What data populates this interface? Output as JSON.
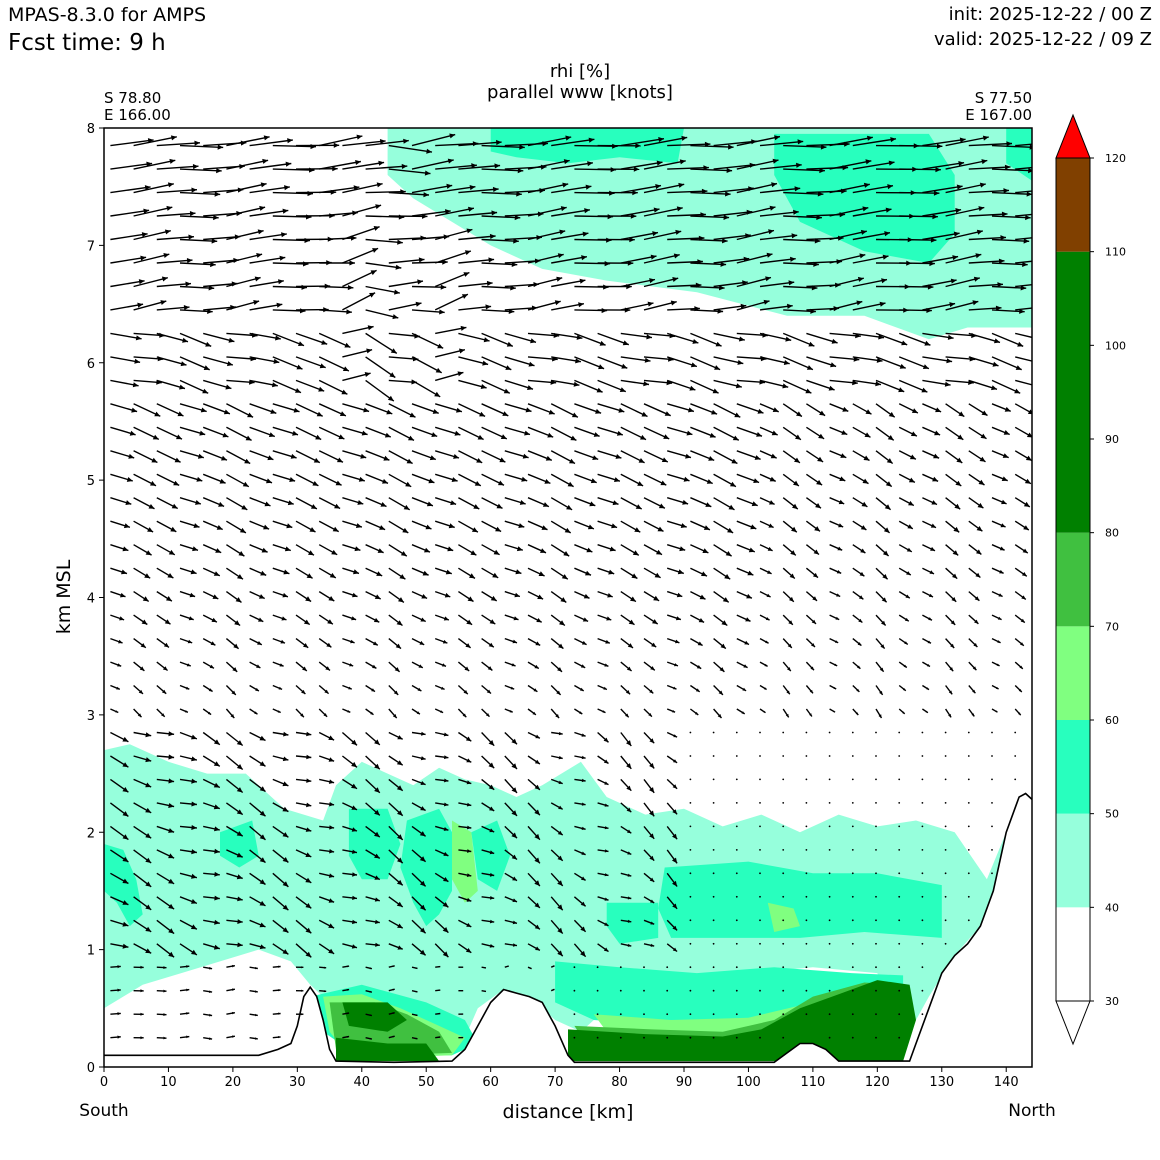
{
  "header": {
    "model": "MPAS-8.3.0 for AMPS",
    "fcst_time": "Fcst time:    9 h",
    "init": "init: 2025-12-22 / 00 Z",
    "valid": "valid: 2025-12-22 / 09 Z"
  },
  "cross_section": {
    "start_lat": "S 78.80",
    "start_lon": "E 166.00",
    "end_lat": "S 77.50",
    "end_lon": "E 167.00",
    "left_end": "South",
    "right_end": "North"
  },
  "chart_data": {
    "type": "heatmap",
    "title_line1": "rhi [%]",
    "title_line2": "parallel www [knots]",
    "xlabel": "distance [km]",
    "ylabel": "km MSL",
    "xlim": [
      0,
      144
    ],
    "ylim": [
      0,
      8
    ],
    "xticks": [
      0,
      10,
      20,
      30,
      40,
      50,
      60,
      70,
      80,
      90,
      100,
      110,
      120,
      130,
      140
    ],
    "yticks": [
      0,
      1,
      2,
      3,
      4,
      5,
      6,
      7,
      8
    ],
    "colorbar": {
      "ticks": [
        30,
        40,
        50,
        60,
        70,
        80,
        90,
        100,
        110,
        120
      ],
      "extend": "both",
      "levels": [
        {
          "from": 30,
          "to": 40,
          "color": "#ffffff"
        },
        {
          "from": 40,
          "to": 50,
          "color": "#96ffdc"
        },
        {
          "from": 50,
          "to": 60,
          "color": "#28ffbe"
        },
        {
          "from": 60,
          "to": 70,
          "color": "#80ff80"
        },
        {
          "from": 70,
          "to": 80,
          "color": "#40c040"
        },
        {
          "from": 80,
          "to": 110,
          "color": "#008000"
        },
        {
          "from": 110,
          "to": 120,
          "color": "#804000"
        },
        {
          "from": 120,
          "to": 130,
          "color": "#ff0000"
        }
      ]
    },
    "terrain": [
      [
        0,
        0.1
      ],
      [
        24,
        0.1
      ],
      [
        27,
        0.15
      ],
      [
        29,
        0.2
      ],
      [
        30,
        0.35
      ],
      [
        31,
        0.6
      ],
      [
        32,
        0.68
      ],
      [
        33,
        0.6
      ],
      [
        34,
        0.4
      ],
      [
        35,
        0.15
      ],
      [
        36,
        0.05
      ],
      [
        45,
        0.04
      ],
      [
        54,
        0.05
      ],
      [
        56,
        0.15
      ],
      [
        58,
        0.35
      ],
      [
        60,
        0.55
      ],
      [
        62,
        0.66
      ],
      [
        64,
        0.63
      ],
      [
        66,
        0.6
      ],
      [
        68,
        0.55
      ],
      [
        70,
        0.35
      ],
      [
        72,
        0.1
      ],
      [
        73,
        0.04
      ],
      [
        104,
        0.04
      ],
      [
        106,
        0.12
      ],
      [
        108,
        0.2
      ],
      [
        110,
        0.2
      ],
      [
        112,
        0.15
      ],
      [
        114,
        0.05
      ],
      [
        125,
        0.05
      ],
      [
        126,
        0.2
      ],
      [
        128,
        0.5
      ],
      [
        130,
        0.8
      ],
      [
        132,
        0.95
      ],
      [
        134,
        1.05
      ],
      [
        136,
        1.2
      ],
      [
        138,
        1.5
      ],
      [
        140,
        2.0
      ],
      [
        142,
        2.3
      ],
      [
        143,
        2.33
      ],
      [
        144,
        2.28
      ]
    ],
    "rhi_regions": [
      {
        "level": 40,
        "points": [
          [
            44,
            8
          ],
          [
            144,
            8
          ],
          [
            144,
            6.3
          ],
          [
            134,
            6.3
          ],
          [
            128,
            6.2
          ],
          [
            118,
            6.4
          ],
          [
            106,
            6.4
          ],
          [
            92,
            6.6
          ],
          [
            78,
            6.7
          ],
          [
            68,
            6.8
          ],
          [
            60,
            7.0
          ],
          [
            54,
            7.2
          ],
          [
            48,
            7.4
          ],
          [
            44,
            7.6
          ]
        ]
      },
      {
        "level": 50,
        "points": [
          [
            60,
            8
          ],
          [
            90,
            8
          ],
          [
            89,
            7.7
          ],
          [
            80,
            7.75
          ],
          [
            72,
            7.7
          ],
          [
            64,
            7.75
          ],
          [
            60,
            7.8
          ]
        ]
      },
      {
        "level": 50,
        "points": [
          [
            104,
            7.95
          ],
          [
            128,
            7.95
          ],
          [
            132,
            7.6
          ],
          [
            132,
            7.1
          ],
          [
            128,
            6.85
          ],
          [
            118,
            6.95
          ],
          [
            108,
            7.2
          ],
          [
            104,
            7.6
          ]
        ]
      },
      {
        "level": 50,
        "points": [
          [
            140,
            8
          ],
          [
            144,
            8
          ],
          [
            144,
            7.55
          ],
          [
            140,
            7.7
          ]
        ]
      },
      {
        "level": 40,
        "points": [
          [
            0,
            2.7
          ],
          [
            4,
            2.75
          ],
          [
            10,
            2.6
          ],
          [
            16,
            2.5
          ],
          [
            22,
            2.5
          ],
          [
            28,
            2.2
          ],
          [
            34,
            2.1
          ],
          [
            36,
            2.4
          ],
          [
            40,
            2.6
          ],
          [
            44,
            2.5
          ],
          [
            48,
            2.4
          ],
          [
            52,
            2.55
          ],
          [
            56,
            2.45
          ],
          [
            60,
            2.4
          ],
          [
            64,
            2.3
          ],
          [
            68,
            2.4
          ],
          [
            74,
            2.6
          ],
          [
            78,
            2.3
          ],
          [
            84,
            2.15
          ],
          [
            90,
            2.2
          ],
          [
            96,
            2.05
          ],
          [
            102,
            2.15
          ],
          [
            108,
            2.0
          ],
          [
            114,
            2.15
          ],
          [
            120,
            2.05
          ],
          [
            126,
            2.1
          ],
          [
            132,
            2.0
          ],
          [
            137,
            1.6
          ],
          [
            140,
            2.0
          ],
          [
            141,
            1.8
          ],
          [
            139,
            1.4
          ],
          [
            136,
            1.2
          ],
          [
            132,
            0.95
          ],
          [
            128,
            0.6
          ],
          [
            126,
            0.4
          ],
          [
            124,
            0.3
          ],
          [
            120,
            0.8
          ],
          [
            110,
            0.85
          ],
          [
            100,
            0.8
          ],
          [
            90,
            0.7
          ],
          [
            80,
            0.6
          ],
          [
            74,
            0.3
          ],
          [
            70,
            0.4
          ],
          [
            66,
            0.6
          ],
          [
            62,
            0.66
          ],
          [
            58,
            0.5
          ],
          [
            56,
            0.25
          ],
          [
            54,
            0.1
          ],
          [
            45,
            0.1
          ],
          [
            38,
            0.2
          ],
          [
            34,
            0.6
          ],
          [
            32,
            0.7
          ],
          [
            29,
            0.9
          ],
          [
            24,
            1.0
          ],
          [
            18,
            0.9
          ],
          [
            12,
            0.8
          ],
          [
            6,
            0.7
          ],
          [
            0,
            0.5
          ]
        ]
      },
      {
        "level": 50,
        "points": [
          [
            0,
            1.9
          ],
          [
            3,
            1.85
          ],
          [
            5,
            1.6
          ],
          [
            6,
            1.3
          ],
          [
            4,
            1.2
          ],
          [
            2,
            1.4
          ],
          [
            0,
            1.5
          ]
        ]
      },
      {
        "level": 50,
        "points": [
          [
            18,
            2.0
          ],
          [
            23,
            2.1
          ],
          [
            24,
            1.8
          ],
          [
            21,
            1.7
          ],
          [
            18,
            1.8
          ]
        ]
      },
      {
        "level": 50,
        "points": [
          [
            38,
            2.2
          ],
          [
            44,
            2.2
          ],
          [
            46,
            1.9
          ],
          [
            44,
            1.6
          ],
          [
            40,
            1.6
          ],
          [
            38,
            1.8
          ]
        ]
      },
      {
        "level": 50,
        "points": [
          [
            47,
            2.1
          ],
          [
            52,
            2.2
          ],
          [
            54,
            2.0
          ],
          [
            54,
            1.5
          ],
          [
            52,
            1.3
          ],
          [
            50,
            1.2
          ],
          [
            48,
            1.4
          ],
          [
            46,
            1.7
          ]
        ]
      },
      {
        "level": 50,
        "points": [
          [
            57,
            2.0
          ],
          [
            61,
            2.1
          ],
          [
            63,
            1.8
          ],
          [
            61,
            1.5
          ],
          [
            58,
            1.6
          ]
        ]
      },
      {
        "level": 50,
        "points": [
          [
            87,
            1.7
          ],
          [
            100,
            1.75
          ],
          [
            110,
            1.65
          ],
          [
            120,
            1.65
          ],
          [
            130,
            1.55
          ],
          [
            130,
            1.1
          ],
          [
            118,
            1.15
          ],
          [
            108,
            1.1
          ],
          [
            96,
            1.1
          ],
          [
            88,
            1.1
          ],
          [
            86,
            1.35
          ]
        ]
      },
      {
        "level": 50,
        "points": [
          [
            78,
            1.4
          ],
          [
            86,
            1.4
          ],
          [
            86,
            1.1
          ],
          [
            80,
            1.05
          ],
          [
            78,
            1.2
          ]
        ]
      },
      {
        "level": 50,
        "points": [
          [
            70,
            0.9
          ],
          [
            80,
            0.85
          ],
          [
            92,
            0.8
          ],
          [
            104,
            0.85
          ],
          [
            116,
            0.8
          ],
          [
            124,
            0.78
          ],
          [
            124,
            0.4
          ],
          [
            112,
            0.4
          ],
          [
            100,
            0.38
          ],
          [
            88,
            0.35
          ],
          [
            76,
            0.4
          ],
          [
            70,
            0.55
          ]
        ]
      },
      {
        "level": 50,
        "points": [
          [
            32,
            0.6
          ],
          [
            40,
            0.7
          ],
          [
            50,
            0.55
          ],
          [
            56,
            0.4
          ],
          [
            58,
            0.2
          ],
          [
            54,
            0.1
          ],
          [
            46,
            0.1
          ],
          [
            38,
            0.15
          ],
          [
            34,
            0.3
          ]
        ]
      },
      {
        "level": 60,
        "points": [
          [
            54,
            2.1
          ],
          [
            57,
            2.0
          ],
          [
            58,
            1.5
          ],
          [
            56,
            1.4
          ],
          [
            54,
            1.6
          ]
        ]
      },
      {
        "level": 60,
        "points": [
          [
            103,
            1.4
          ],
          [
            107,
            1.35
          ],
          [
            108,
            1.2
          ],
          [
            104,
            1.15
          ]
        ]
      },
      {
        "level": 60,
        "points": [
          [
            34,
            0.6
          ],
          [
            40,
            0.62
          ],
          [
            46,
            0.5
          ],
          [
            52,
            0.35
          ],
          [
            56,
            0.25
          ],
          [
            54,
            0.1
          ],
          [
            44,
            0.08
          ],
          [
            38,
            0.1
          ],
          [
            35,
            0.3
          ]
        ]
      },
      {
        "level": 60,
        "points": [
          [
            76,
            0.45
          ],
          [
            88,
            0.4
          ],
          [
            100,
            0.42
          ],
          [
            110,
            0.55
          ],
          [
            120,
            0.72
          ],
          [
            124,
            0.7
          ],
          [
            124,
            0.35
          ],
          [
            112,
            0.3
          ],
          [
            100,
            0.28
          ],
          [
            88,
            0.26
          ],
          [
            78,
            0.3
          ]
        ]
      },
      {
        "level": 70,
        "points": [
          [
            35,
            0.55
          ],
          [
            42,
            0.55
          ],
          [
            47,
            0.45
          ],
          [
            52,
            0.3
          ],
          [
            54,
            0.12
          ],
          [
            44,
            0.1
          ],
          [
            36,
            0.15
          ]
        ]
      },
      {
        "level": 70,
        "points": [
          [
            73,
            0.35
          ],
          [
            85,
            0.32
          ],
          [
            96,
            0.3
          ],
          [
            104,
            0.4
          ],
          [
            110,
            0.6
          ],
          [
            118,
            0.72
          ],
          [
            124,
            0.7
          ],
          [
            124,
            0.1
          ],
          [
            112,
            0.1
          ],
          [
            100,
            0.1
          ],
          [
            88,
            0.1
          ],
          [
            76,
            0.1
          ]
        ]
      },
      {
        "level": 80,
        "points": [
          [
            37,
            0.55
          ],
          [
            44,
            0.55
          ],
          [
            47,
            0.4
          ],
          [
            44,
            0.3
          ],
          [
            38,
            0.35
          ]
        ]
      },
      {
        "level": 80,
        "points": [
          [
            36,
            0.25
          ],
          [
            44,
            0.2
          ],
          [
            50,
            0.2
          ],
          [
            52,
            0.05
          ],
          [
            36,
            0.05
          ]
        ]
      },
      {
        "level": 80,
        "points": [
          [
            72,
            0.32
          ],
          [
            84,
            0.28
          ],
          [
            96,
            0.26
          ],
          [
            102,
            0.32
          ],
          [
            108,
            0.5
          ],
          [
            114,
            0.62
          ],
          [
            120,
            0.74
          ],
          [
            125,
            0.7
          ],
          [
            126,
            0.4
          ],
          [
            124,
            0.05
          ],
          [
            72,
            0.05
          ]
        ]
      }
    ],
    "wind": {
      "x_start": 1,
      "x_step": 3.6,
      "y_start": 0.05,
      "y_step": 0.2
    }
  }
}
